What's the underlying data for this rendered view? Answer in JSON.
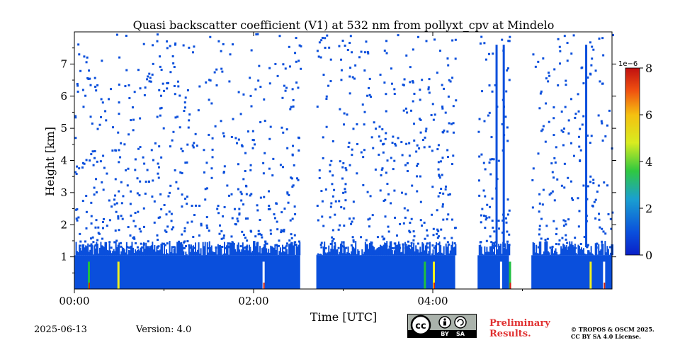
{
  "chart_data": {
    "type": "heatmap",
    "title": "Quasi backscatter coefficient (V1) at 532 nm from pollyxt_cpv at Mindelo",
    "xlabel": "Time [UTC]",
    "ylabel": "Height [km]",
    "x_ticks": [
      "00:00",
      "02:00",
      "04:00"
    ],
    "y_ticks": [
      "1",
      "2",
      "3",
      "4",
      "5",
      "6",
      "7"
    ],
    "xlim_hours": [
      0,
      6
    ],
    "ylim_km": [
      0,
      8
    ],
    "colorbar": {
      "ticks": [
        "0",
        "2",
        "4",
        "6",
        "8"
      ],
      "range": [
        0,
        8
      ],
      "exponent_label": "1e−6",
      "colormap": "jet"
    },
    "colors": {
      "background": "#ffffff",
      "low_signal": "#0a4fdc",
      "mid_signal": "#20c040",
      "high_signal": "#f0f020",
      "peak_signal": "#d02010"
    },
    "features": {
      "boundary_layer_top_km": 1.3,
      "data_gaps_hours": [
        [
          2.52,
          2.7
        ],
        [
          4.25,
          4.5
        ],
        [
          4.85,
          5.1
        ]
      ],
      "cloud_columns_hours": [
        0.15,
        0.48,
        2.1,
        3.9,
        4.0,
        4.75,
        4.85,
        5.75,
        5.9
      ]
    },
    "footer": {
      "date": "2025-06-13",
      "version": "Version: 4.0",
      "license_badge_text": [
        "cc",
        "BY",
        "SA"
      ],
      "preliminary": [
        "Preliminary",
        "Results."
      ],
      "copyright": [
        "© TROPOS & OSCM 2025.",
        "CC BY SA 4.0 License."
      ]
    }
  }
}
